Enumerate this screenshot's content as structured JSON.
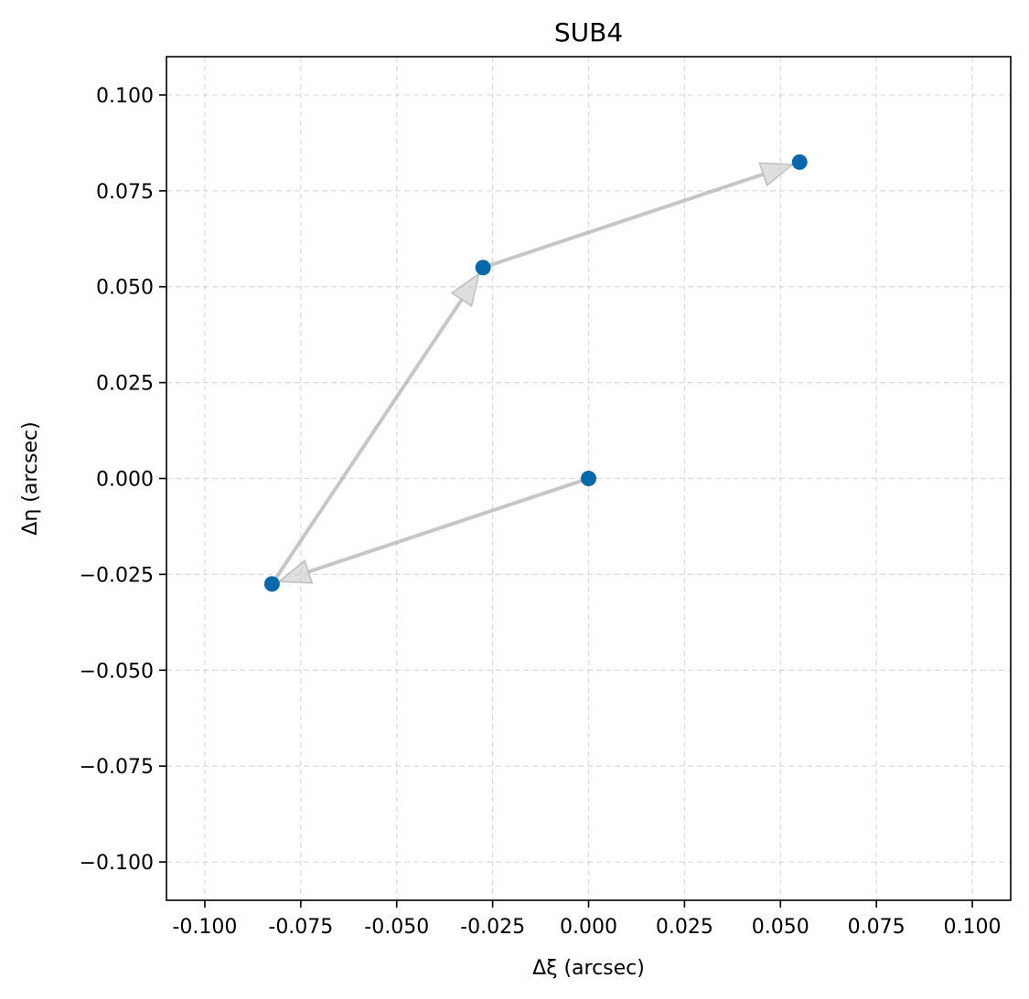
{
  "chart_data": {
    "type": "scatter",
    "title": "SUB4",
    "xlabel": "Δξ (arcsec)",
    "ylabel": "Δη (arcsec)",
    "xlim": [
      -0.11,
      0.11
    ],
    "ylim": [
      -0.11,
      0.11
    ],
    "grid": true,
    "x_ticks": [
      -0.1,
      -0.075,
      -0.05,
      -0.025,
      0.0,
      0.025,
      0.05,
      0.075,
      0.1
    ],
    "x_tick_labels": [
      "-0.100",
      "-0.075",
      "-0.050",
      "-0.025",
      "0.000",
      "0.025",
      "0.050",
      "0.075",
      "0.100"
    ],
    "y_ticks": [
      0.1,
      0.075,
      0.05,
      0.025,
      0.0,
      -0.025,
      -0.05,
      -0.075,
      -0.1
    ],
    "y_tick_labels": [
      "0.100",
      "0.075",
      "0.050",
      "0.025",
      "0.000",
      "−0.025",
      "−0.050",
      "−0.075",
      "−0.100"
    ],
    "series": [
      {
        "x": [
          0.0,
          -0.0825,
          -0.0275,
          0.055
        ],
        "y": [
          0.0,
          -0.0275,
          0.055,
          0.0825
        ],
        "color": "#0868ac"
      }
    ],
    "arrows": [
      {
        "from": [
          0.0,
          0.0
        ],
        "to": [
          -0.0825,
          -0.0275
        ]
      },
      {
        "from": [
          -0.0825,
          -0.0275
        ],
        "to": [
          -0.0275,
          0.055
        ]
      },
      {
        "from": [
          -0.0275,
          0.055
        ],
        "to": [
          0.055,
          0.0825
        ]
      }
    ],
    "arrow_color": "#a0a0a0"
  }
}
